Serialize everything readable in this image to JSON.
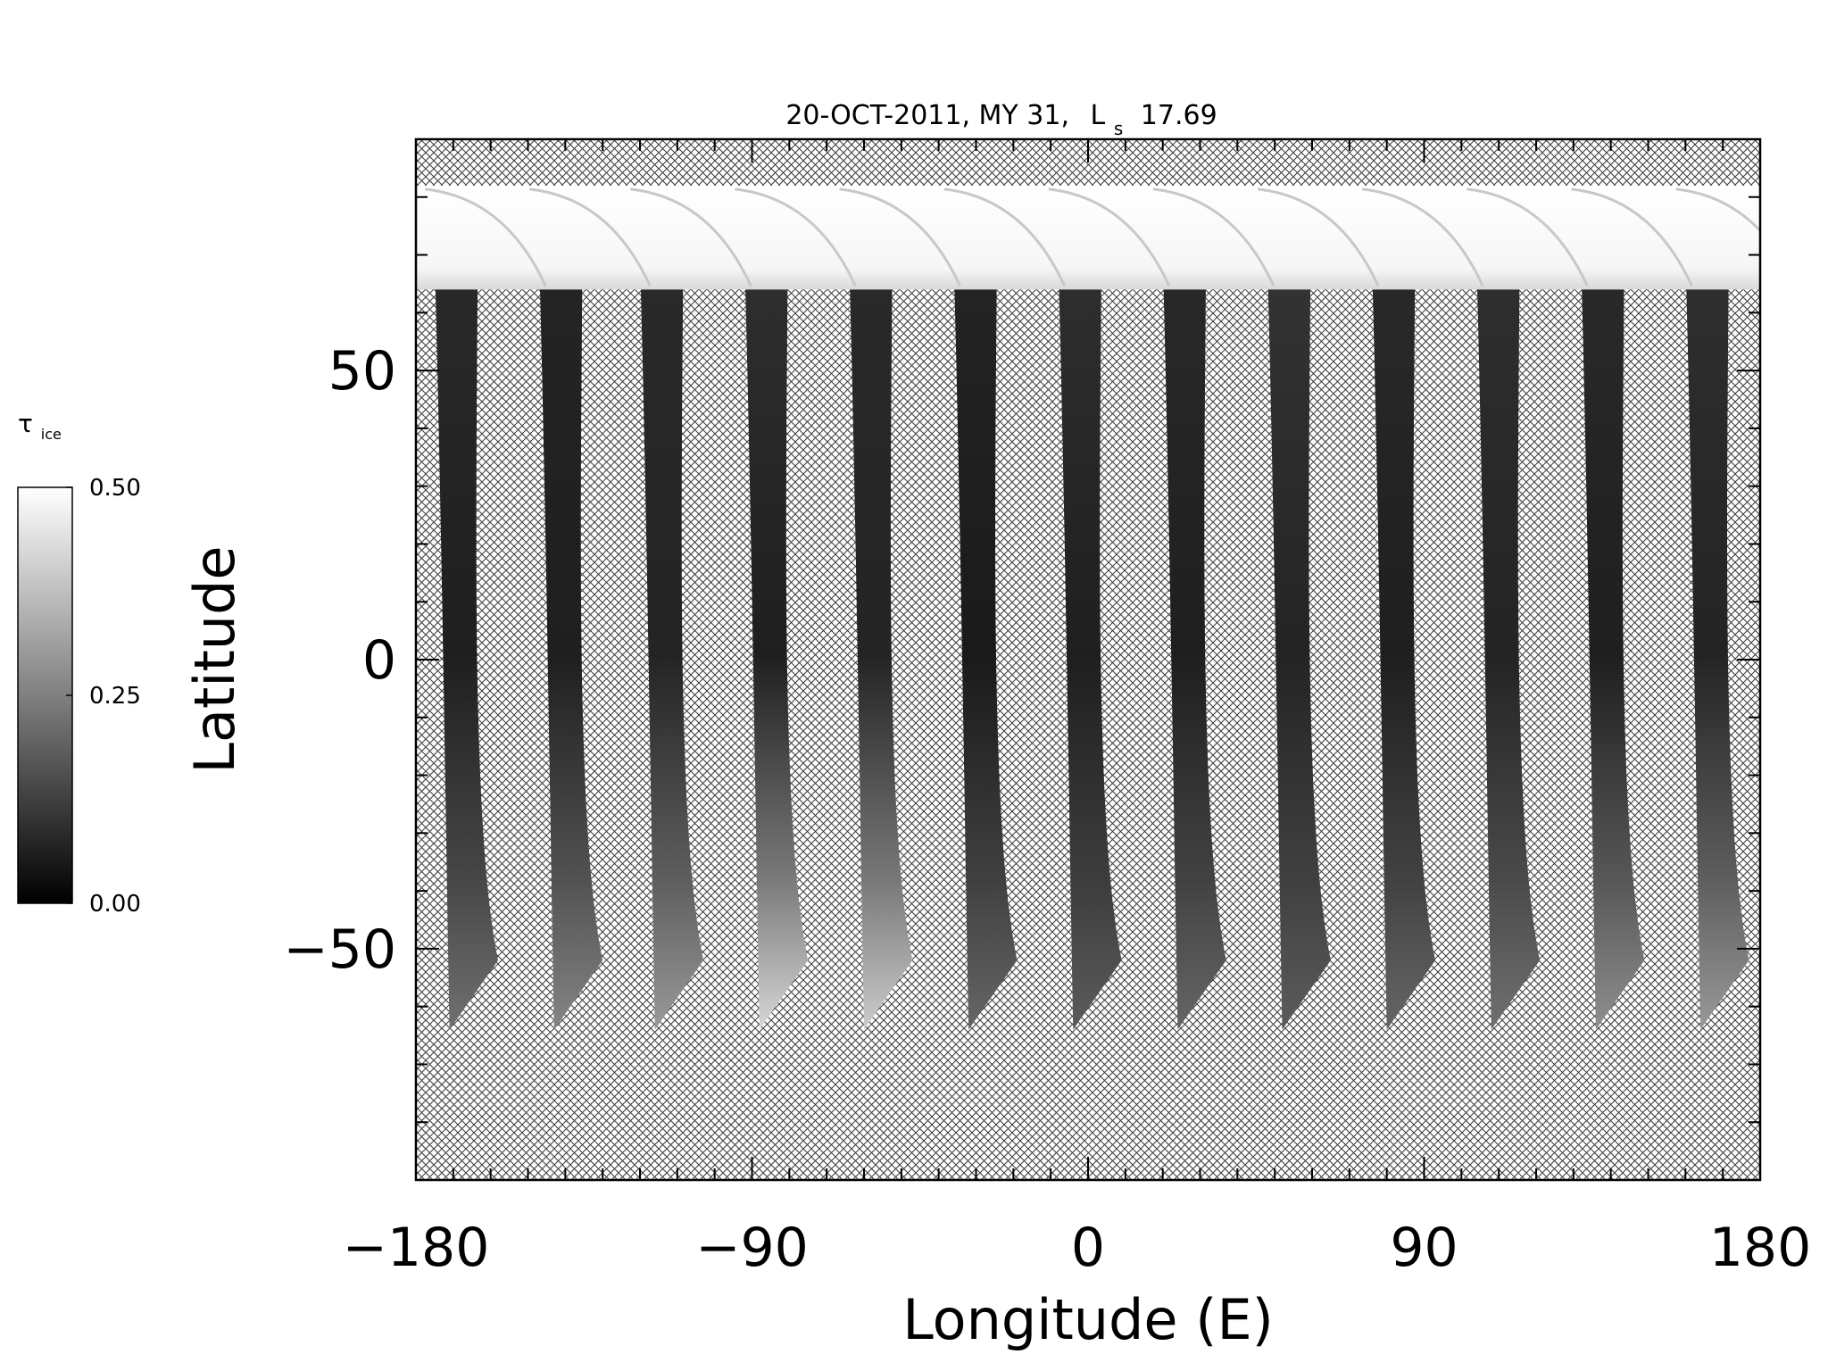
{
  "chart_data": {
    "type": "heatmap",
    "title_date": "20-OCT-2011, MY 31,",
    "title_ls_symbol": "L",
    "title_ls_sub": "s",
    "title_ls_value": "17.69",
    "xlabel": "Longitude (E)",
    "ylabel": "Latitude",
    "xlim": [
      -180,
      180
    ],
    "ylim": [
      -90,
      90
    ],
    "x_ticks": [
      -180,
      -90,
      0,
      90,
      180
    ],
    "x_tick_labels": [
      "−180",
      "−90",
      "0",
      "90",
      "180"
    ],
    "y_ticks": [
      -50,
      0,
      50
    ],
    "y_tick_labels": [
      "−50",
      "0",
      "50"
    ],
    "x_minor_step": 10,
    "y_minor_step": 10,
    "no_data_pattern": "crosshatch",
    "colorbar": {
      "label_symbol": "τ",
      "label_sub": "ice",
      "range": [
        0.0,
        0.5
      ],
      "ticks": [
        0.0,
        0.25,
        0.5
      ],
      "tick_labels": [
        "0.00",
        "0.25",
        "0.50"
      ],
      "colormap": "grayscale"
    },
    "polar_cap": {
      "lat_bottom": 64,
      "lat_top": 82,
      "tau": 0.5
    },
    "swaths": [
      {
        "lon": -168,
        "tau_north": 0.08,
        "tau_mid": 0.06,
        "tau_south": 0.22
      },
      {
        "lon": -140,
        "tau_north": 0.07,
        "tau_mid": 0.06,
        "tau_south": 0.26
      },
      {
        "lon": -113,
        "tau_north": 0.08,
        "tau_mid": 0.07,
        "tau_south": 0.3
      },
      {
        "lon": -85,
        "tau_north": 0.09,
        "tau_mid": 0.06,
        "tau_south": 0.42
      },
      {
        "lon": -57,
        "tau_north": 0.08,
        "tau_mid": 0.07,
        "tau_south": 0.4
      },
      {
        "lon": -29,
        "tau_north": 0.07,
        "tau_mid": 0.05,
        "tau_south": 0.2
      },
      {
        "lon": -1,
        "tau_north": 0.09,
        "tau_mid": 0.06,
        "tau_south": 0.18
      },
      {
        "lon": 27,
        "tau_north": 0.08,
        "tau_mid": 0.06,
        "tau_south": 0.2
      },
      {
        "lon": 55,
        "tau_north": 0.1,
        "tau_mid": 0.07,
        "tau_south": 0.18
      },
      {
        "lon": 83,
        "tau_north": 0.08,
        "tau_mid": 0.06,
        "tau_south": 0.2
      },
      {
        "lon": 111,
        "tau_north": 0.09,
        "tau_mid": 0.07,
        "tau_south": 0.22
      },
      {
        "lon": 139,
        "tau_north": 0.08,
        "tau_mid": 0.06,
        "tau_south": 0.28
      },
      {
        "lon": 167,
        "tau_north": 0.09,
        "tau_mid": 0.07,
        "tau_south": 0.3
      }
    ]
  }
}
